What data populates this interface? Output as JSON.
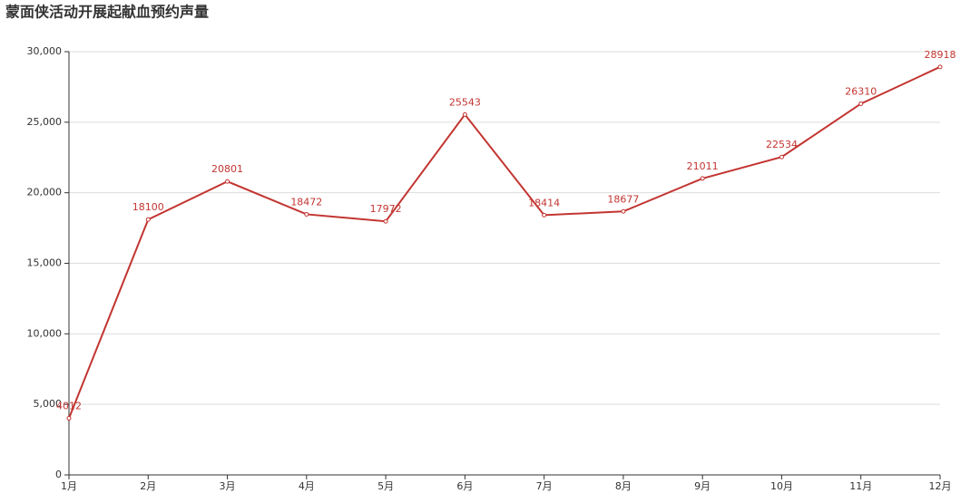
{
  "chart_data": {
    "type": "line",
    "title": "蒙面侠活动开展起献血预约声量",
    "categories": [
      "1月",
      "2月",
      "3月",
      "4月",
      "5月",
      "6月",
      "7月",
      "8月",
      "9月",
      "10月",
      "11月",
      "12月"
    ],
    "values": [
      4012,
      18100,
      20801,
      18472,
      17972,
      25543,
      18414,
      18677,
      21011,
      22534,
      26310,
      28918
    ],
    "color": "#c23531",
    "ylim": [
      0,
      30000
    ],
    "yticks": [
      0,
      {
        "value": 5000,
        "label": "5,000"
      },
      {
        "value": 10000,
        "label": "10,000"
      },
      {
        "value": 15000,
        "label": "15,000"
      },
      {
        "value": 20000,
        "label": "20,000"
      },
      {
        "value": 25000,
        "label": "25,000"
      },
      {
        "value": 30000,
        "label": "30,000"
      }
    ],
    "grid": true
  }
}
